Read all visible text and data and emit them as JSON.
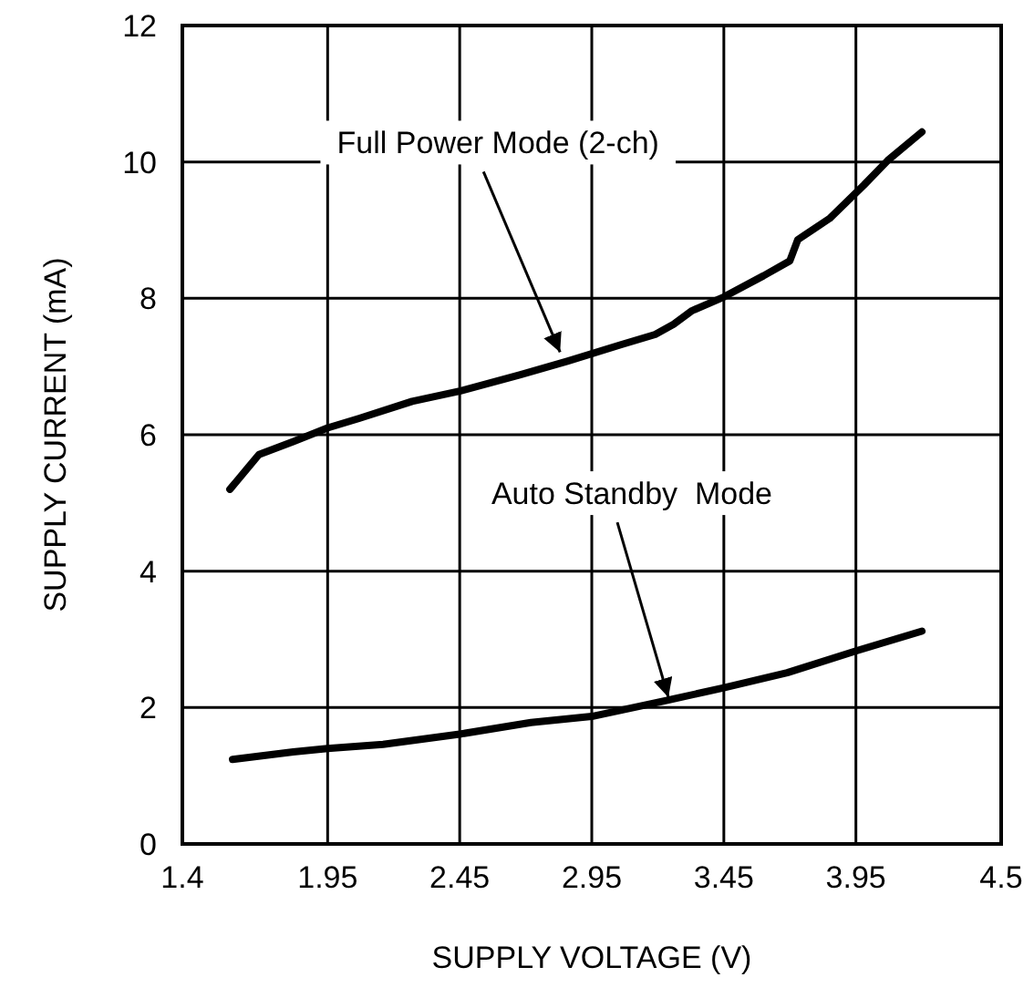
{
  "chart_data": {
    "type": "line",
    "xlabel": "SUPPLY VOLTAGE (V)",
    "ylabel": "SUPPLY CURRENT (mA)",
    "xlim": [
      1.4,
      4.5
    ],
    "xticks": [
      1.4,
      1.95,
      2.45,
      2.95,
      3.45,
      3.95,
      4.5
    ],
    "ylim": [
      0,
      12
    ],
    "yticks": [
      0,
      2,
      4,
      6,
      8,
      10,
      12
    ],
    "grid": true,
    "marker": "none",
    "line_style": "solid",
    "series": [
      {
        "color": "#000000",
        "x": [
          1.58,
          1.69,
          1.82,
          1.95,
          2.07,
          2.27,
          2.45,
          2.68,
          2.86,
          3.06,
          3.19,
          3.26,
          3.33,
          3.45,
          3.6,
          3.7,
          3.73,
          3.85,
          3.98,
          4.07,
          4.2
        ],
        "values": [
          5.2,
          5.71,
          5.9,
          6.1,
          6.24,
          6.49,
          6.64,
          6.88,
          7.08,
          7.32,
          7.47,
          7.62,
          7.82,
          8.02,
          8.33,
          8.55,
          8.86,
          9.17,
          9.66,
          10.02,
          10.44
        ]
      },
      {
        "color": "#000000",
        "x": [
          1.59,
          1.82,
          1.95,
          2.16,
          2.45,
          2.72,
          2.95,
          3.24,
          3.45,
          3.69,
          3.95,
          4.2
        ],
        "values": [
          1.24,
          1.35,
          1.4,
          1.46,
          1.61,
          1.78,
          1.87,
          2.11,
          2.29,
          2.51,
          2.83,
          3.12
        ]
      }
    ],
    "annotations": [
      {
        "text": "Full Power Mode (2-ch)",
        "x": 2.83,
        "y": 7.13
      },
      {
        "text": "Auto Standby  Mode",
        "x": 3.24,
        "y": 2.07
      }
    ]
  }
}
